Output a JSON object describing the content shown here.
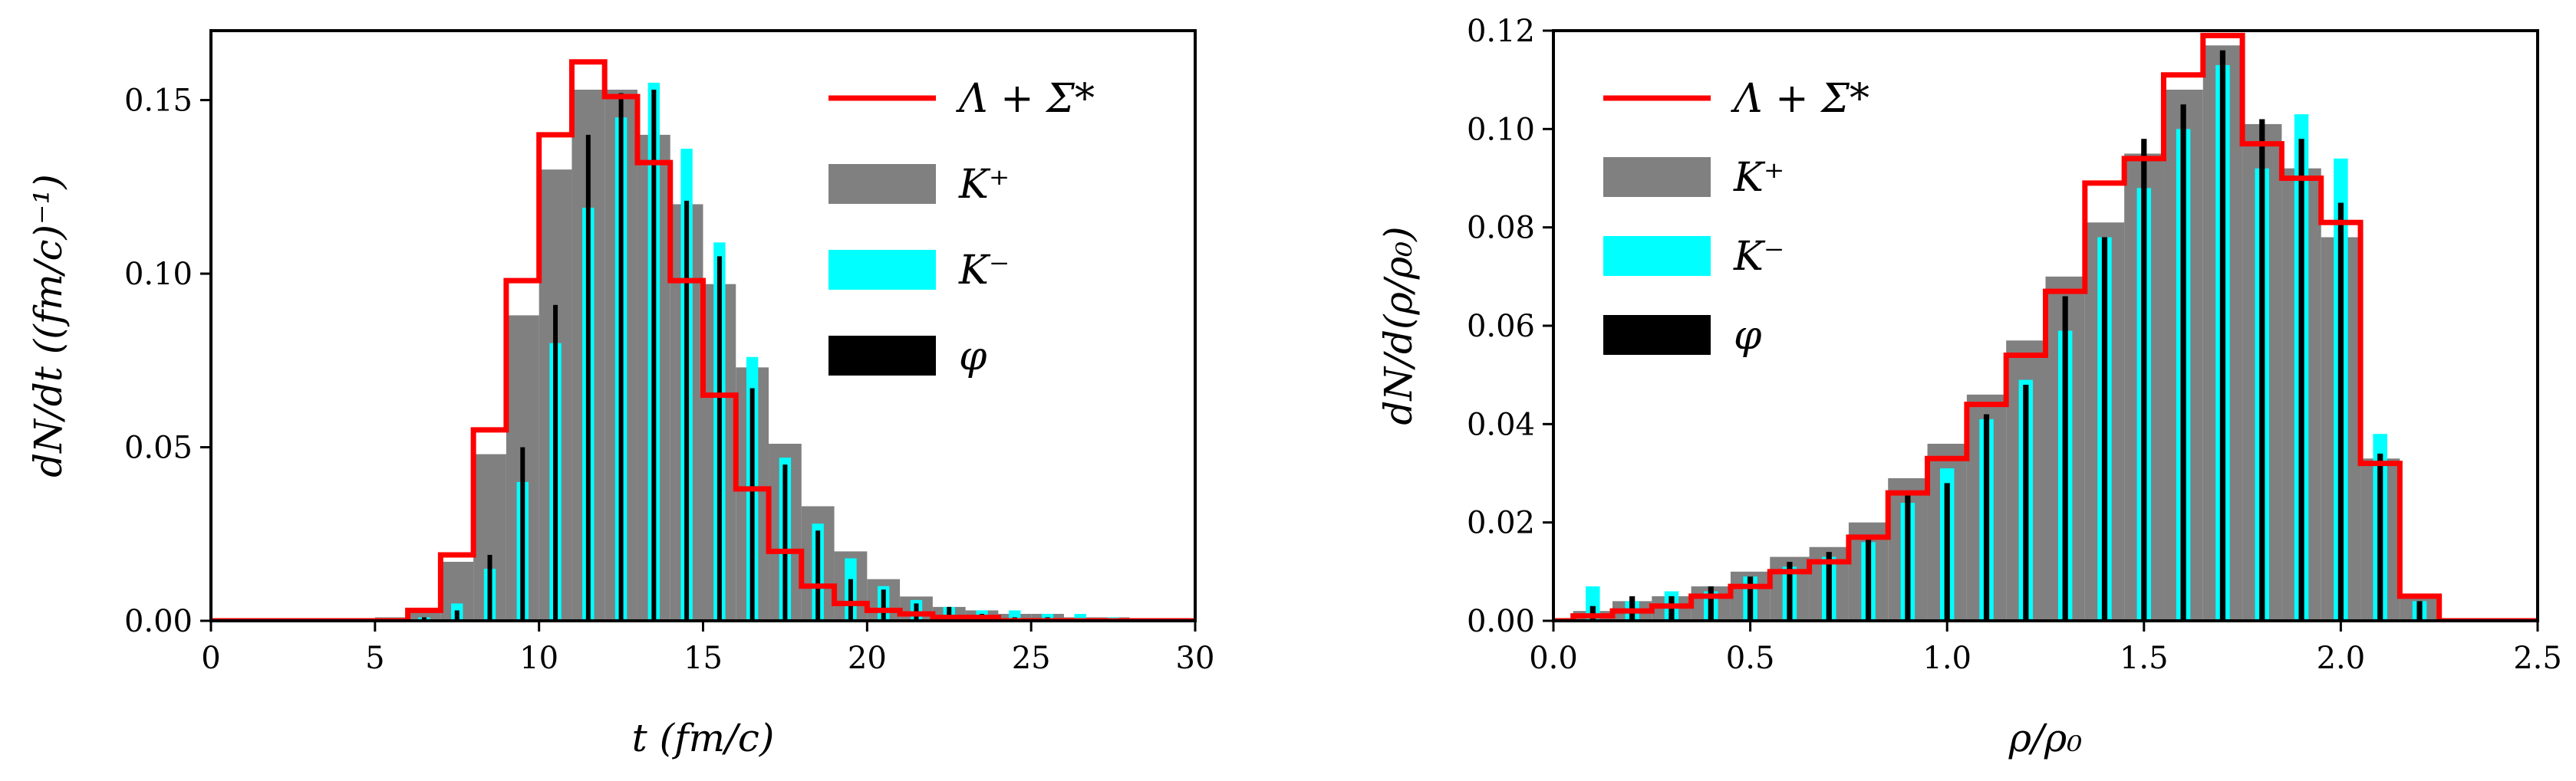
{
  "colors": {
    "lambda_sigma": "#ff0000",
    "k_plus": "#808080",
    "k_minus": "#00ffff",
    "phi": "#000000",
    "axes": "#000000",
    "background": "#ffffff"
  },
  "chart_data": [
    {
      "type": "bar",
      "name": "time-distribution",
      "xlabel": "t (fm/c)",
      "ylabel": "dN/dt ((fm/c)⁻¹)",
      "xlim": [
        0,
        30
      ],
      "ylim": [
        0,
        0.17
      ],
      "xticks": [
        0,
        5,
        10,
        15,
        20,
        25,
        30
      ],
      "xtick_labels": [
        "0",
        "5",
        "10",
        "15",
        "20",
        "25",
        "30"
      ],
      "yticks": [
        0,
        0.05,
        0.1,
        0.15
      ],
      "ytick_labels": [
        "0.00",
        "0.05",
        "0.10",
        "0.15"
      ],
      "bin_width": 1,
      "legend": {
        "location": "upper right",
        "entries": [
          "Λ + Σ*",
          "K⁺",
          "K⁻",
          "φ"
        ]
      },
      "series": [
        {
          "name": "Λ + Σ*",
          "style": "step",
          "x": [
            5.5,
            6.5,
            7.5,
            8.5,
            9.5,
            10.5,
            11.5,
            12.5,
            13.5,
            14.5,
            15.5,
            16.5,
            17.5,
            18.5,
            19.5,
            20.5,
            21.5,
            22.5,
            23.5,
            24.5,
            25.5,
            26.5,
            27.5,
            28.5
          ],
          "values": [
            0.0,
            0.003,
            0.019,
            0.055,
            0.098,
            0.14,
            0.161,
            0.151,
            0.132,
            0.098,
            0.065,
            0.038,
            0.02,
            0.01,
            0.005,
            0.003,
            0.002,
            0.001,
            0.001,
            0.0,
            0.0,
            0.0,
            0.0,
            0.0
          ]
        },
        {
          "name": "K⁺",
          "style": "bar",
          "x": [
            5.5,
            6.5,
            7.5,
            8.5,
            9.5,
            10.5,
            11.5,
            12.5,
            13.5,
            14.5,
            15.5,
            16.5,
            17.5,
            18.5,
            19.5,
            20.5,
            21.5,
            22.5,
            23.5,
            24.5,
            25.5,
            26.5,
            27.5,
            28.5
          ],
          "values": [
            0.001,
            0.003,
            0.017,
            0.048,
            0.088,
            0.13,
            0.153,
            0.153,
            0.14,
            0.12,
            0.097,
            0.073,
            0.051,
            0.033,
            0.02,
            0.012,
            0.007,
            0.004,
            0.003,
            0.002,
            0.002,
            0.001,
            0.001,
            0.0
          ]
        },
        {
          "name": "K⁻",
          "style": "bar",
          "x": [
            5.5,
            6.5,
            7.5,
            8.5,
            9.5,
            10.5,
            11.5,
            12.5,
            13.5,
            14.5,
            15.5,
            16.5,
            17.5,
            18.5,
            19.5,
            20.5,
            21.5,
            22.5,
            23.5,
            24.5,
            25.5,
            26.5,
            27.5,
            28.5
          ],
          "values": [
            0.0,
            0.001,
            0.005,
            0.015,
            0.04,
            0.08,
            0.119,
            0.145,
            0.155,
            0.136,
            0.109,
            0.076,
            0.047,
            0.028,
            0.018,
            0.01,
            0.006,
            0.004,
            0.003,
            0.003,
            0.002,
            0.002,
            0.001,
            0.0
          ]
        },
        {
          "name": "φ",
          "style": "bar",
          "x": [
            5.5,
            6.5,
            7.5,
            8.5,
            9.5,
            10.5,
            11.5,
            12.5,
            13.5,
            14.5,
            15.5,
            16.5,
            17.5,
            18.5,
            19.5,
            20.5,
            21.5,
            22.5,
            23.5,
            24.5,
            25.5,
            26.5,
            27.5,
            28.5
          ],
          "values": [
            0.0,
            0.001,
            0.003,
            0.019,
            0.05,
            0.091,
            0.14,
            0.152,
            0.153,
            0.121,
            0.105,
            0.067,
            0.045,
            0.026,
            0.012,
            0.009,
            0.005,
            0.004,
            0.002,
            0.001,
            0.001,
            0.0,
            0.0,
            0.0
          ]
        }
      ]
    },
    {
      "type": "bar",
      "name": "density-distribution",
      "xlabel": "ρ/ρ₀",
      "ylabel": "dN/d(ρ/ρ₀)",
      "xlim": [
        0,
        2.5
      ],
      "ylim": [
        0,
        0.12
      ],
      "xticks": [
        0,
        0.5,
        1.0,
        1.5,
        2.0,
        2.5
      ],
      "xtick_labels": [
        "0.0",
        "0.5",
        "1.0",
        "1.5",
        "2.0",
        "2.5"
      ],
      "yticks": [
        0,
        0.02,
        0.04,
        0.06,
        0.08,
        0.1,
        0.12
      ],
      "ytick_labels": [
        "0.00",
        "0.02",
        "0.04",
        "0.06",
        "0.08",
        "0.10",
        "0.12"
      ],
      "bin_width": 0.1,
      "legend": {
        "location": "upper left",
        "entries": [
          "Λ + Σ*",
          "K⁺",
          "K⁻",
          "φ"
        ]
      },
      "series": [
        {
          "name": "Λ + Σ*",
          "style": "step",
          "x": [
            0.1,
            0.2,
            0.3,
            0.4,
            0.5,
            0.6,
            0.7,
            0.8,
            0.9,
            1.0,
            1.1,
            1.2,
            1.3,
            1.4,
            1.5,
            1.6,
            1.7,
            1.8,
            1.9,
            2.0,
            2.1,
            2.2
          ],
          "values": [
            0.001,
            0.002,
            0.003,
            0.005,
            0.007,
            0.01,
            0.012,
            0.017,
            0.026,
            0.033,
            0.044,
            0.054,
            0.067,
            0.089,
            0.094,
            0.111,
            0.119,
            0.097,
            0.09,
            0.081,
            0.032,
            0.005
          ]
        },
        {
          "name": "K⁺",
          "style": "bar",
          "x": [
            0.1,
            0.2,
            0.3,
            0.4,
            0.5,
            0.6,
            0.7,
            0.8,
            0.9,
            1.0,
            1.1,
            1.2,
            1.3,
            1.4,
            1.5,
            1.6,
            1.7,
            1.8,
            1.9,
            2.0,
            2.1,
            2.2
          ],
          "values": [
            0.002,
            0.004,
            0.005,
            0.007,
            0.01,
            0.013,
            0.015,
            0.02,
            0.029,
            0.036,
            0.046,
            0.057,
            0.07,
            0.081,
            0.095,
            0.108,
            0.117,
            0.101,
            0.092,
            0.078,
            0.033,
            0.005
          ]
        },
        {
          "name": "K⁻",
          "style": "bar",
          "x": [
            0.1,
            0.2,
            0.3,
            0.4,
            0.5,
            0.6,
            0.7,
            0.8,
            0.9,
            1.0,
            1.1,
            1.2,
            1.3,
            1.4,
            1.5,
            1.6,
            1.7,
            1.8,
            1.9,
            2.0,
            2.1,
            2.2
          ],
          "values": [
            0.007,
            0.004,
            0.006,
            0.006,
            0.009,
            0.011,
            0.013,
            0.016,
            0.024,
            0.031,
            0.041,
            0.049,
            0.059,
            0.078,
            0.088,
            0.1,
            0.113,
            0.092,
            0.103,
            0.094,
            0.038,
            0.004
          ]
        },
        {
          "name": "φ",
          "style": "bar",
          "x": [
            0.1,
            0.2,
            0.3,
            0.4,
            0.5,
            0.6,
            0.7,
            0.8,
            0.9,
            1.0,
            1.1,
            1.2,
            1.3,
            1.4,
            1.5,
            1.6,
            1.7,
            1.8,
            1.9,
            2.0,
            2.1,
            2.2
          ],
          "values": [
            0.003,
            0.005,
            0.005,
            0.007,
            0.009,
            0.012,
            0.014,
            0.017,
            0.026,
            0.028,
            0.042,
            0.048,
            0.066,
            0.078,
            0.098,
            0.105,
            0.116,
            0.102,
            0.098,
            0.085,
            0.034,
            0.004
          ]
        }
      ]
    }
  ]
}
